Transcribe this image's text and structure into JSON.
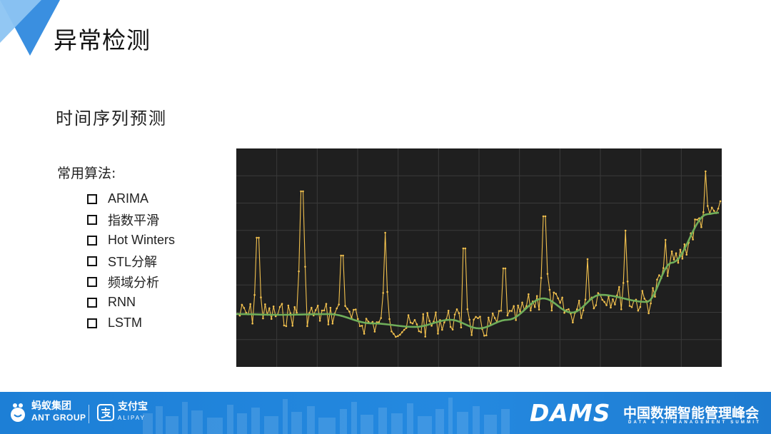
{
  "header": {
    "title": "异常检测",
    "brand_colors": {
      "dark": "#3a8fe0",
      "light": "#8cc4f2"
    }
  },
  "section": {
    "subtitle": "时间序列预测"
  },
  "algorithms": {
    "heading": "常用算法:",
    "items": [
      {
        "label": "ARIMA"
      },
      {
        "label": "指数平滑"
      },
      {
        "label": "Hot Winters"
      },
      {
        "label": "STL分解"
      },
      {
        "label": "频域分析"
      },
      {
        "label": "RNN"
      },
      {
        "label": "LSTM"
      }
    ]
  },
  "chart_data": {
    "type": "line",
    "title": "",
    "xlabel": "",
    "ylabel": "",
    "grid": true,
    "background": "#1f1f1f",
    "grid_color": "#3a3a3a",
    "series": [
      {
        "color": "#f2c14e",
        "style": "raw-with-points"
      },
      {
        "color": "#6fae5a",
        "style": "smooth-trend"
      }
    ]
  },
  "footer": {
    "ant_group": {
      "cn": "蚂蚁集团",
      "en": "ANT GROUP"
    },
    "alipay": {
      "cn": "支付宝",
      "en": "ALIPAY"
    },
    "dams": {
      "logo": "DAMS",
      "cn": "中国数据智能管理峰会",
      "en": "DATA & AI MANAGEMENT SUMMIT"
    },
    "color": "#1f82da"
  }
}
